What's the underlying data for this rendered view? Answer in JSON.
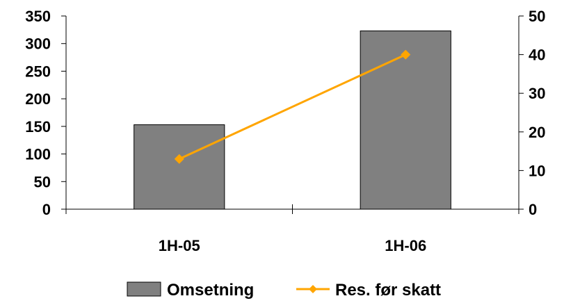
{
  "chart_data": {
    "type": "bar",
    "categories": [
      "1H-05",
      "1H-06"
    ],
    "series": [
      {
        "name": "Omsetning",
        "type": "bar",
        "axis": "left",
        "values": [
          153,
          323
        ],
        "color": "#808080"
      },
      {
        "name": "Res. før skatt",
        "type": "line",
        "axis": "right",
        "values": [
          13,
          40
        ],
        "color": "#FFA500",
        "marker": "diamond"
      }
    ],
    "y_left": {
      "min": 0,
      "max": 350,
      "step": 50,
      "ticks": [
        "0",
        "50",
        "100",
        "150",
        "200",
        "250",
        "300",
        "350"
      ]
    },
    "y_right": {
      "min": 0,
      "max": 50,
      "step": 10,
      "ticks": [
        "0",
        "10",
        "20",
        "30",
        "40",
        "50"
      ]
    },
    "title": "",
    "xlabel": "",
    "ylabel": "",
    "grid": false,
    "legend_position": "bottom"
  }
}
